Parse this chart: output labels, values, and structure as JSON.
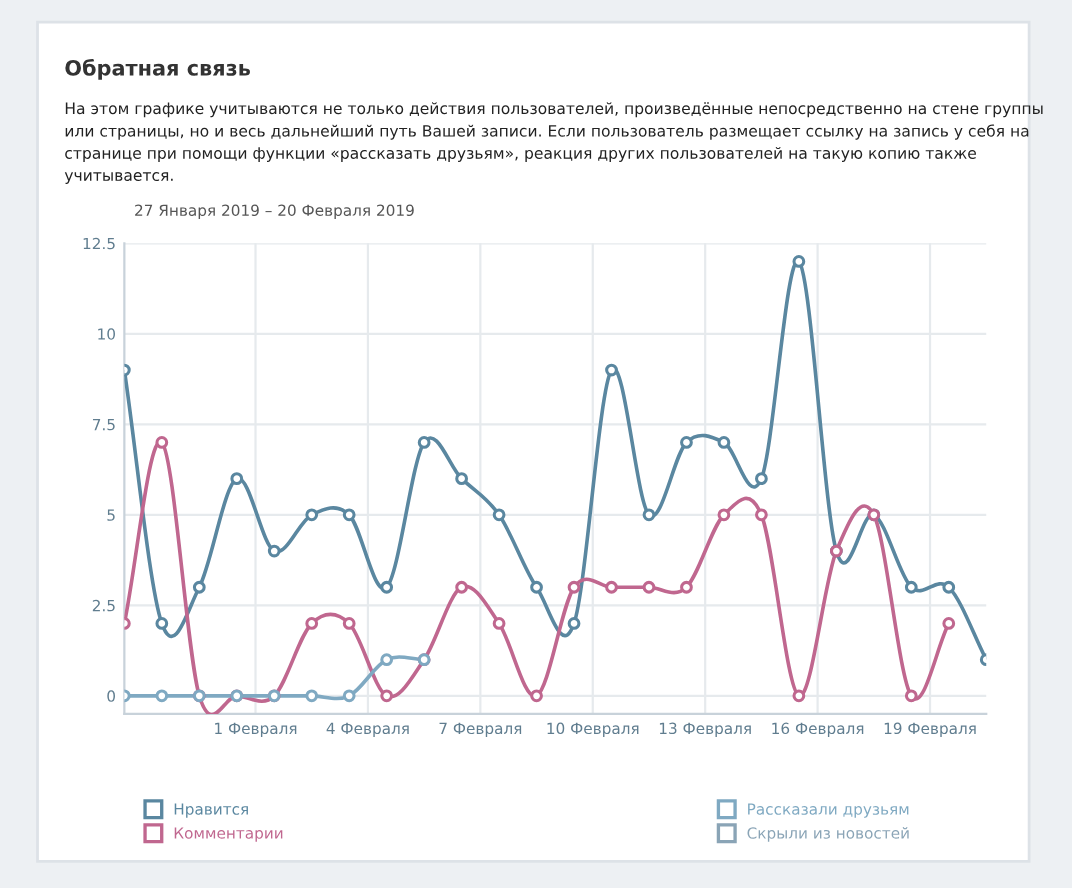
{
  "chart_data": {
    "type": "line",
    "title": "Обратная связь",
    "subtitle": "На этом графике учитываются не только действия пользователей, произведённые непосредственно на стене группы или страницы, но и весь дальнейший путь Вашей записи. Если пользователь размещает ссылку на запись у себя на странице при помощи функции «рассказать друзьям», реакция других пользователей на такую копию также учитывается.",
    "annotations": [
      "27 Января 2019 – 20 Февраля 2019"
    ],
    "x": [
      "2019-01-28T12:00",
      "2019-01-29T12:00",
      "2019-01-30T12:00",
      "2019-01-31T12:00",
      "2019-02-01T12:00",
      "2019-02-02T12:00",
      "2019-02-03T12:00",
      "2019-02-04T12:00",
      "2019-02-05T12:00",
      "2019-02-06T12:00",
      "2019-02-07T12:00",
      "2019-02-08T12:00",
      "2019-02-09T12:00",
      "2019-02-10T12:00",
      "2019-02-11T12:00",
      "2019-02-12T12:00",
      "2019-02-13T12:00",
      "2019-02-14T12:00",
      "2019-02-15T12:00",
      "2019-02-16T12:00",
      "2019-02-17T12:00",
      "2019-02-18T12:00",
      "2019-02-19T12:00",
      "2019-02-20T12:00"
    ],
    "series": [
      {
        "name": "Нравится",
        "color": "#5a87a0",
        "values": [
          9,
          2,
          3,
          6,
          4,
          5,
          5,
          3,
          7,
          6,
          5,
          3,
          2,
          9,
          5,
          7,
          7,
          6,
          12,
          4,
          5,
          3,
          3,
          1
        ]
      },
      {
        "name": "Комментарии",
        "color": "#c0678f",
        "values": [
          2,
          7,
          0,
          0,
          0,
          2,
          2,
          0,
          1,
          3,
          2,
          0,
          3,
          3,
          3,
          3,
          5,
          5,
          0,
          4,
          5,
          0,
          2,
          null
        ]
      },
      {
        "name": "Рассказали друзьям",
        "color": "#7fa9c2",
        "values": [
          0,
          0,
          0,
          0,
          0,
          0,
          0,
          1,
          1,
          null,
          null,
          null,
          null,
          null,
          null,
          null,
          null,
          null,
          null,
          null,
          null,
          null,
          null,
          null
        ]
      },
      {
        "name": "Скрыли из новостей",
        "color": "#8aa4b6",
        "values": [
          null,
          null,
          null,
          null,
          null,
          null,
          null,
          null,
          null,
          null,
          null,
          null,
          null,
          null,
          null,
          null,
          null,
          null,
          null,
          null,
          null,
          null,
          null,
          null
        ]
      }
    ],
    "ylim": [
      -0.5,
      12.5
    ],
    "yticks": [
      0,
      2.5,
      5,
      7.5,
      10,
      12.5
    ],
    "xlim": [
      "2019-01-28T12:00",
      "2019-02-20T12:00"
    ],
    "xticks": [
      {
        "value": "2019-02-01",
        "label": "1 Февраля"
      },
      {
        "value": "2019-02-04",
        "label": "4 Февраля"
      },
      {
        "value": "2019-02-07",
        "label": "7 Февраля"
      },
      {
        "value": "2019-02-10",
        "label": "10 Февраля"
      },
      {
        "value": "2019-02-13",
        "label": "13 Февраля"
      },
      {
        "value": "2019-02-16",
        "label": "16 Февраля"
      },
      {
        "value": "2019-02-19",
        "label": "19 Февраля"
      }
    ],
    "grid": true,
    "legend": "bottom",
    "marker": "circle",
    "line_style": "solid"
  }
}
